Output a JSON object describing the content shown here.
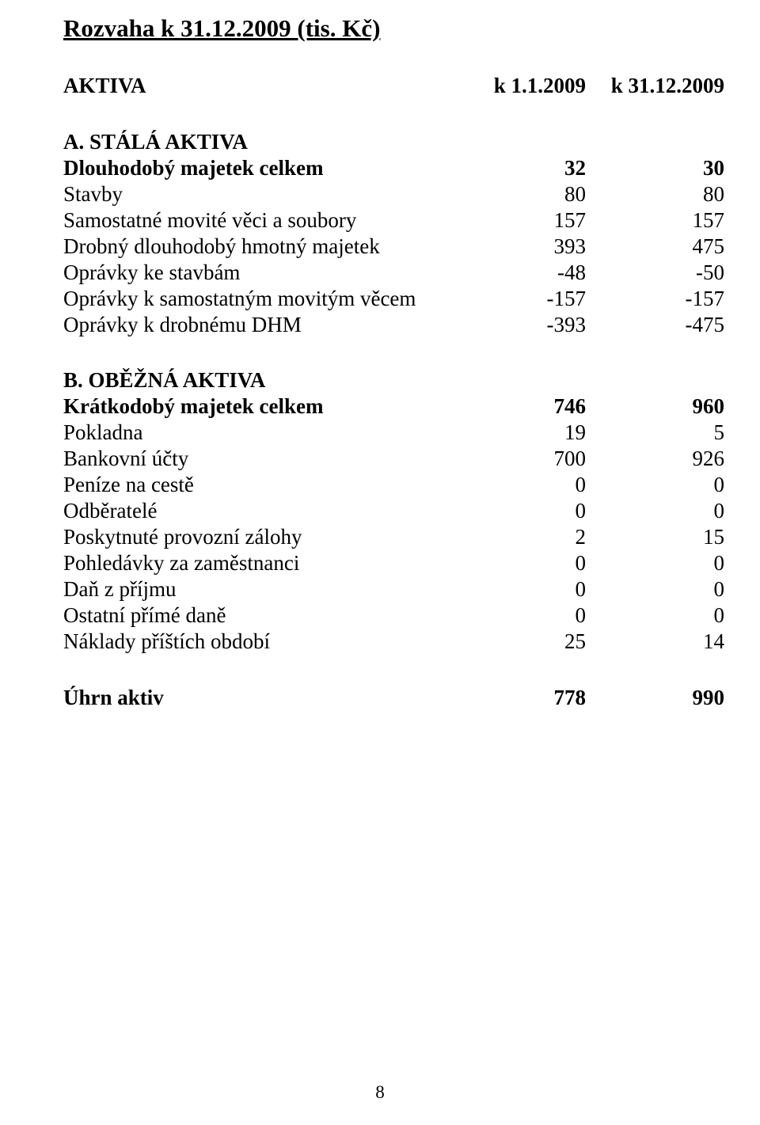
{
  "title": "Rozvaha k 31.12.2009 (tis. Kč)",
  "header": {
    "label": "AKTIVA",
    "c1": "k 1.1.2009",
    "c2": "k 31.12.2009"
  },
  "sectionA": {
    "heading": "A. STÁLÁ AKTIVA",
    "rows": [
      {
        "label": "Dlouhodobý majetek celkem",
        "c1": "32",
        "c2": "30",
        "bold": true
      },
      {
        "label": "Stavby",
        "c1": "80",
        "c2": "80"
      },
      {
        "label": "Samostatné movité věci a soubory",
        "c1": "157",
        "c2": "157"
      },
      {
        "label": "Drobný dlouhodobý hmotný majetek",
        "c1": "393",
        "c2": "475"
      },
      {
        "label": "Oprávky ke stavbám",
        "c1": "-48",
        "c2": "-50"
      },
      {
        "label": "Oprávky k samostatným movitým věcem",
        "c1": "-157",
        "c2": "-157"
      },
      {
        "label": "Oprávky k drobnému DHM",
        "c1": "-393",
        "c2": "-475"
      }
    ]
  },
  "sectionB": {
    "heading": "B. OBĚŽNÁ AKTIVA",
    "rows": [
      {
        "label": "Krátkodobý majetek celkem",
        "c1": "746",
        "c2": "960",
        "bold": true
      },
      {
        "label": "Pokladna",
        "c1": "19",
        "c2": "5"
      },
      {
        "label": "Bankovní účty",
        "c1": "700",
        "c2": "926"
      },
      {
        "label": "Peníze na cestě",
        "c1": "0",
        "c2": "0"
      },
      {
        "label": "Odběratelé",
        "c1": "0",
        "c2": "0"
      },
      {
        "label": "Poskytnuté provozní zálohy",
        "c1": "2",
        "c2": "15"
      },
      {
        "label": "Pohledávky za zaměstnanci",
        "c1": "0",
        "c2": "0"
      },
      {
        "label": "Daň z příjmu",
        "c1": "0",
        "c2": "0"
      },
      {
        "label": "Ostatní přímé daně",
        "c1": "0",
        "c2": "0"
      },
      {
        "label": "Náklady příštích období",
        "c1": "25",
        "c2": "14"
      }
    ]
  },
  "total": {
    "label": "Úhrn aktiv",
    "c1": "778",
    "c2": "990"
  },
  "pageNumber": "8"
}
